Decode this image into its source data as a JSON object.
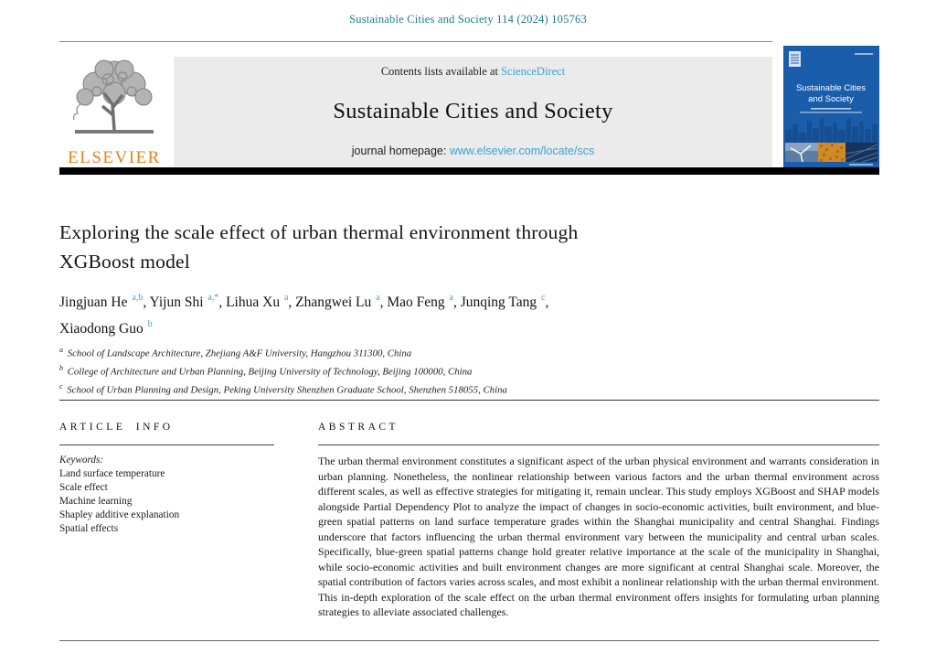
{
  "header": {
    "citation": "Sustainable Cities and Society 114 (2024) 105763",
    "publisher": "ELSEVIER"
  },
  "banner": {
    "contents_prefix": "Contents lists available at ",
    "sciencedirect": "ScienceDirect",
    "journal_title": "Sustainable Cities and Society",
    "homepage_prefix": "journal homepage: ",
    "homepage_url": "www.elsevier.com/locate/scs"
  },
  "cover": {
    "title_line1": "Sustainable Cities",
    "title_line2": "and Society"
  },
  "article": {
    "title_line1": "Exploring the scale effect of urban thermal environment through",
    "title_line2": "XGBoost model",
    "author_lines": [
      [
        {
          "name": "Jingjuan He",
          "sup": "a,b"
        },
        {
          "name": "Yijun Shi",
          "sup": "a,*"
        },
        {
          "name": "Lihua Xu",
          "sup": "a"
        },
        {
          "name": "Zhangwei Lu",
          "sup": "a"
        },
        {
          "name": "Mao Feng",
          "sup": "a"
        },
        {
          "name": "Junqing Tang",
          "sup": "c"
        }
      ],
      [
        {
          "name": "Xiaodong Guo",
          "sup": "b"
        }
      ]
    ],
    "affiliations": [
      {
        "sup": "a",
        "text": "School of Landscape Architecture, Zhejiang A&F University, Hangzhou 311300, China"
      },
      {
        "sup": "b",
        "text": "College of Architecture and Urban Planning, Beijing University of Technology, Beijing 100000, China"
      },
      {
        "sup": "c",
        "text": "School of Urban Planning and Design, Peking University Shenzhen Graduate School, Shenzhen 518055, China"
      }
    ]
  },
  "article_info": {
    "heading": "ARTICLE INFO",
    "keywords_label": "Keywords:",
    "keywords": [
      "Land surface temperature",
      "Scale effect",
      "Machine learning",
      "Shapley additive explanation",
      "Spatial effects"
    ]
  },
  "abstract": {
    "heading": "ABSTRACT",
    "text": "The urban thermal environment constitutes a significant aspect of the urban physical environment and warrants consideration in urban planning. Nonetheless, the nonlinear relationship between various factors and the urban thermal environment across different scales, as well as effective strategies for mitigating it, remain unclear. This study employs XGBoost and SHAP models alongside Partial Dependency Plot to analyze the impact of changes in socio-economic activities, built environment, and blue-green spatial patterns on land surface temperature grades within the Shanghai municipality and central Shanghai. Findings underscore that factors influencing the urban thermal environment vary between the municipality and central urban scales. Specifically, blue-green spatial patterns change hold greater relative importance at the scale of the municipality in Shanghai, while socio-economic activities and built environment changes are more significant at central Shanghai scale. Moreover, the spatial contribution of factors varies across scales, and most exhibit a nonlinear relationship with the urban thermal environment. This in-depth exploration of the scale effect on the urban thermal environment offers insights for formulating urban planning strategies to alleviate associated challenges."
  },
  "colors": {
    "teal": "#1c7b93",
    "link": "#3ba0d8",
    "sup": "#4f9dc9",
    "orange": "#e5831c",
    "banner_bg": "#ebebeb",
    "cover_blue": "#1a5dab"
  }
}
